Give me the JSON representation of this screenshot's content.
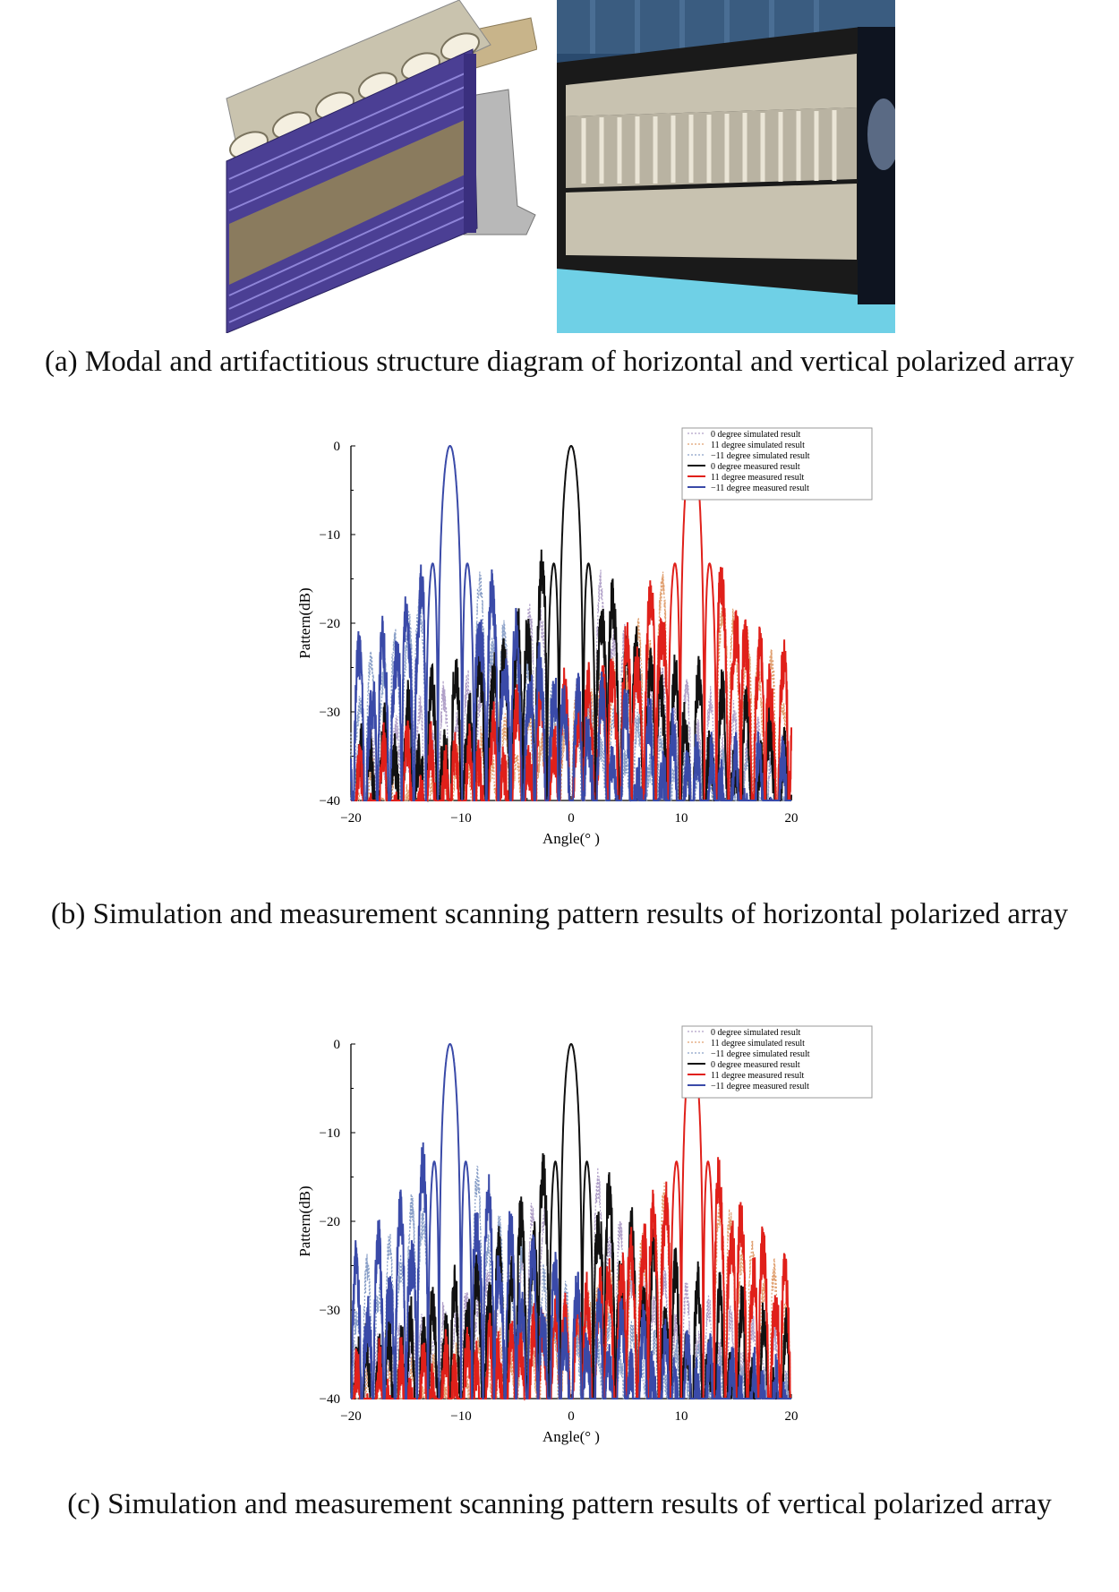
{
  "captions": {
    "a": "(a) Modal and artifactitious structure diagram of horizontal and vertical polarized array",
    "b": "(b) Simulation and measurement scanning pattern results of horizontal polarized array",
    "c": "(c) Simulation and measurement scanning pattern results of  vertical polarized array"
  },
  "colors": {
    "sim0": "#b0a0c8",
    "sim11": "#e0a070",
    "simm11": "#8aa0c8",
    "meas0": "#111111",
    "meas11": "#e0201a",
    "measm11": "#3a4aa8"
  },
  "chart_data": [
    {
      "type": "line",
      "title": "",
      "xlabel": "Angle(° )",
      "ylabel": "Pattern(dB)",
      "xlim": [
        -20,
        20
      ],
      "ylim": [
        -40,
        0
      ],
      "x_ticks": [
        "−20",
        "−10",
        "0",
        "10",
        "20"
      ],
      "y_ticks": [
        "0",
        "−10",
        "−20",
        "−30",
        "−40"
      ],
      "legend_position": "top-right",
      "series": [
        {
          "name": "0 degree simulated result",
          "style": "dotted",
          "color": "#b0a0c8",
          "steer": 0,
          "kind": "sim"
        },
        {
          "name": "11 degree simulated result",
          "style": "dotted",
          "color": "#e0a070",
          "steer": 11,
          "kind": "sim"
        },
        {
          "name": "−11 degree simulated result",
          "style": "dotted",
          "color": "#8aa0c8",
          "steer": -11,
          "kind": "sim"
        },
        {
          "name": "0 degree measured result",
          "style": "solid",
          "color": "#111111",
          "steer": 0,
          "kind": "meas"
        },
        {
          "name": "11 degree measured result",
          "style": "solid",
          "color": "#e0201a",
          "steer": 11,
          "kind": "meas"
        },
        {
          "name": "−11 degree measured result",
          "style": "solid",
          "color": "#3a4aa8",
          "steer": -11,
          "kind": "meas"
        }
      ],
      "peaks_dB": [
        0,
        0,
        0
      ],
      "first_sidelobe_dB": -13.5,
      "mainlobe_width_deg": 1.1,
      "floor_dB": -40
    },
    {
      "type": "line",
      "title": "",
      "xlabel": "Angle(° )",
      "ylabel": "Pattern(dB)",
      "xlim": [
        -20,
        20
      ],
      "ylim": [
        -40,
        0
      ],
      "x_ticks": [
        "−20",
        "−10",
        "0",
        "10",
        "20"
      ],
      "y_ticks": [
        "0",
        "−10",
        "−20",
        "−30",
        "−40"
      ],
      "legend_position": "top-right",
      "series": [
        {
          "name": "0 degree simulated result",
          "style": "dotted",
          "color": "#b0a0c8",
          "steer": 0,
          "kind": "sim"
        },
        {
          "name": "11 degree simulated result",
          "style": "dotted",
          "color": "#e0a070",
          "steer": 11,
          "kind": "sim"
        },
        {
          "name": "−11 degree simulated result",
          "style": "dotted",
          "color": "#8aa0c8",
          "steer": -11,
          "kind": "sim"
        },
        {
          "name": "0 degree measured result",
          "style": "solid",
          "color": "#111111",
          "steer": 0,
          "kind": "meas"
        },
        {
          "name": "11 degree measured result",
          "style": "solid",
          "color": "#e0201a",
          "steer": 11,
          "kind": "meas"
        },
        {
          "name": "−11 degree measured result",
          "style": "solid",
          "color": "#3a4aa8",
          "steer": -11,
          "kind": "meas"
        }
      ],
      "peaks_dB": [
        0,
        0,
        0
      ],
      "first_sidelobe_dB": -13,
      "mainlobe_width_deg": 1.0,
      "floor_dB": -40
    }
  ]
}
